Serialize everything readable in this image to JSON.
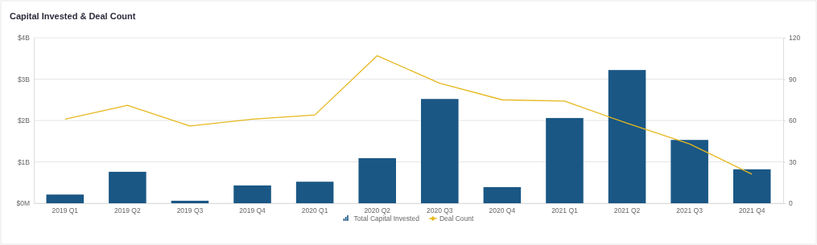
{
  "chart_data": {
    "type": "bar",
    "title": "Capital Invested & Deal Count",
    "categories": [
      "2019 Q1",
      "2019 Q2",
      "2019 Q3",
      "2019 Q4",
      "2020 Q1",
      "2020 Q2",
      "2020 Q3",
      "2020 Q4",
      "2021 Q1",
      "2021 Q2",
      "2021 Q3",
      "2021 Q4"
    ],
    "series": [
      {
        "name": "Total Capital Invested",
        "type": "bar",
        "color": "#1a5785",
        "values": [
          0.21,
          0.76,
          0.06,
          0.43,
          0.52,
          1.09,
          2.52,
          0.39,
          2.06,
          3.22,
          1.53,
          0.82
        ]
      },
      {
        "name": "Deal Count",
        "type": "line",
        "axis": "y2",
        "color": "#e6b81e",
        "values": [
          61,
          71,
          56,
          61,
          64,
          107,
          87,
          75,
          74,
          58,
          43,
          21
        ]
      }
    ],
    "ylim": [
      0,
      4
    ],
    "yticks": [
      {
        "value": 0,
        "label": "$0M"
      },
      {
        "value": 1,
        "label": "$1B"
      },
      {
        "value": 2,
        "label": "$2B"
      },
      {
        "value": 3,
        "label": "$3B"
      },
      {
        "value": 4,
        "label": "$4B"
      }
    ],
    "y2lim": [
      0,
      120
    ],
    "y2ticks": [
      0,
      30,
      60,
      90,
      120
    ],
    "grid": "y",
    "legend": "bottom",
    "marker": "none"
  }
}
